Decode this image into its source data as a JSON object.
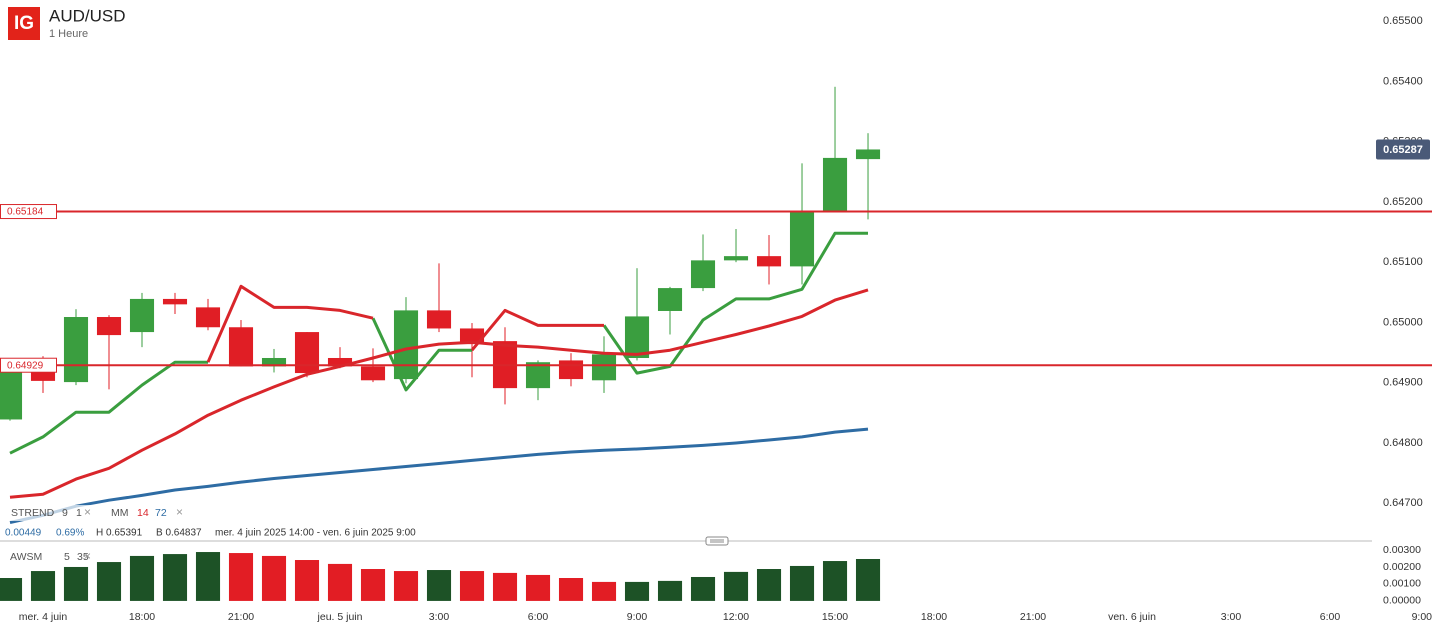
{
  "header": {
    "logo": "IG",
    "symbol": "AUD/USD",
    "interval": "1 Heure"
  },
  "chart_data": [
    {
      "type": "candlestick",
      "up_color": "#3a9e3f",
      "down_color": "#e01e25",
      "open": [
        0.64839,
        0.64929,
        0.64901,
        0.65009,
        0.64984,
        0.65039,
        0.65025,
        0.64992,
        0.64927,
        0.64984,
        0.64941,
        0.64927,
        0.64906,
        0.6502,
        0.6499,
        0.64969,
        0.64891,
        0.64937,
        0.64904,
        0.64941,
        0.65019,
        0.65057,
        0.65103,
        0.6511,
        0.65093,
        0.65183,
        0.65271
      ],
      "high": [
        0.64929,
        0.64944,
        0.65022,
        0.65012,
        0.65049,
        0.65049,
        0.65039,
        0.65004,
        0.64956,
        0.64984,
        0.64959,
        0.64957,
        0.65042,
        0.65098,
        0.64999,
        0.64992,
        0.64937,
        0.64949,
        0.64977,
        0.6509,
        0.65059,
        0.65146,
        0.65155,
        0.65145,
        0.65264,
        0.65391,
        0.65314
      ],
      "low": [
        0.64837,
        0.64883,
        0.64896,
        0.64889,
        0.64959,
        0.65014,
        0.64987,
        0.64927,
        0.64917,
        0.64909,
        0.64924,
        0.64901,
        0.64899,
        0.64984,
        0.64909,
        0.64864,
        0.64871,
        0.64894,
        0.64883,
        0.64937,
        0.6498,
        0.65052,
        0.651,
        0.65063,
        0.65063,
        0.65183,
        0.65171
      ],
      "close": [
        0.64929,
        0.64903,
        0.65009,
        0.64979,
        0.65039,
        0.6503,
        0.64992,
        0.64927,
        0.64941,
        0.64916,
        0.64927,
        0.64904,
        0.6502,
        0.6499,
        0.64964,
        0.64891,
        0.64934,
        0.64906,
        0.64947,
        0.6501,
        0.65057,
        0.65103,
        0.6511,
        0.65093,
        0.65183,
        0.65273,
        0.65287
      ],
      "xlim": [
        -0.303,
        43.09
      ],
      "xticks": [
        {
          "value": 1,
          "label": "mer. 4 juin"
        },
        {
          "value": 4,
          "label": "18:00"
        },
        {
          "value": 7,
          "label": "21:00"
        },
        {
          "value": 10,
          "label": "jeu. 5 juin"
        },
        {
          "value": 13,
          "label": "3:00"
        },
        {
          "value": 16,
          "label": "6:00"
        },
        {
          "value": 19,
          "label": "9:00"
        },
        {
          "value": 22,
          "label": "12:00"
        },
        {
          "value": 25,
          "label": "15:00"
        },
        {
          "value": 28,
          "label": "18:00"
        },
        {
          "value": 31,
          "label": "21:00"
        },
        {
          "value": 34,
          "label": "ven. 6 juin"
        },
        {
          "value": 37,
          "label": "3:00"
        },
        {
          "value": 40,
          "label": "6:00"
        },
        {
          "value": 43,
          "label": "9:00"
        }
      ],
      "ylim": [
        0.64639,
        0.65535
      ],
      "yticks": [
        {
          "value": 0.655,
          "label": "0.65500"
        },
        {
          "value": 0.654,
          "label": "0.65400"
        },
        {
          "value": 0.653,
          "label": "0.65300"
        },
        {
          "value": 0.652,
          "label": "0.65200"
        },
        {
          "value": 0.651,
          "label": "0.65100"
        },
        {
          "value": 0.65,
          "label": "0.65000"
        },
        {
          "value": 0.649,
          "label": "0.64900"
        },
        {
          "value": 0.648,
          "label": "0.64800"
        },
        {
          "value": 0.647,
          "label": "0.64700"
        }
      ],
      "hlines": [
        {
          "value": 0.65184,
          "label": "0.65184",
          "color": "#d9262b"
        },
        {
          "value": 0.64929,
          "label": "0.64929",
          "color": "#d9262b"
        }
      ],
      "last_price": {
        "value": 0.65287,
        "label": "0.65287",
        "color": "#4a5a78"
      },
      "indicators": [
        {
          "name": "STREND",
          "params": [
            "9",
            "1"
          ],
          "lines": [
            {
              "color": "#3a9e3f",
              "values": [
                0.64783,
                0.6481,
                0.64851,
                0.64851,
                0.64896,
                0.64934,
                0.64934,
                null,
                null,
                null,
                null,
                0.65007,
                0.64888,
                0.64954,
                0.64954,
                null,
                null,
                null,
                0.64995,
                0.64916,
                0.64927,
                0.65004,
                0.65039,
                0.65039,
                0.65055,
                0.65148,
                0.65148
              ]
            },
            {
              "color": "#d9262b",
              "values": [
                null,
                null,
                null,
                null,
                null,
                null,
                0.64934,
                0.6506,
                0.65025,
                0.65025,
                0.6502,
                0.65007,
                null,
                null,
                0.64954,
                0.6502,
                0.64995,
                0.64995,
                0.64995,
                null,
                null,
                null,
                null,
                null,
                null,
                null,
                null
              ]
            }
          ]
        },
        {
          "name": "MM",
          "params": [
            "14",
            "72"
          ],
          "lines": [
            {
              "color": "#d9262b",
              "values": [
                0.6471,
                0.64715,
                0.6474,
                0.64758,
                0.64788,
                0.64815,
                0.64846,
                0.64871,
                0.64893,
                0.64914,
                0.64927,
                0.64941,
                0.64956,
                0.64964,
                0.64967,
                0.64962,
                0.64959,
                0.64954,
                0.64949,
                0.64947,
                0.64954,
                0.64967,
                0.6498,
                0.64994,
                0.6501,
                0.65037,
                0.65054
              ]
            },
            {
              "color": "#2e6ca4",
              "values": [
                0.64668,
                0.6468,
                0.64695,
                0.64705,
                0.64713,
                0.64722,
                0.64728,
                0.64735,
                0.64741,
                0.64746,
                0.64751,
                0.64756,
                0.64761,
                0.64766,
                0.64771,
                0.64776,
                0.64781,
                0.64785,
                0.64788,
                0.6479,
                0.64793,
                0.64796,
                0.648,
                0.64805,
                0.6481,
                0.64818,
                0.64823
              ]
            }
          ]
        }
      ],
      "stats": {
        "change": "0.00449",
        "change_pct": "0.69%",
        "high": "H 0.65391",
        "low": "B 0.64837",
        "range": "mer. 4 juin 2025 14:00 - ven. 6 juin 2025 9:00"
      }
    },
    {
      "type": "bar",
      "title": "AWSM",
      "params": [
        "5",
        "35"
      ],
      "values": [
        0.00135,
        0.00176,
        0.002,
        0.00229,
        0.00265,
        0.00276,
        0.00288,
        0.00282,
        0.00265,
        0.00241,
        0.00218,
        0.00188,
        0.00176,
        0.00182,
        0.00176,
        0.00165,
        0.00153,
        0.00135,
        0.00112,
        0.00112,
        0.00118,
        0.00141,
        0.00171,
        0.00188,
        0.00206,
        0.00235,
        0.00247
      ],
      "colors": [
        "#1d5226",
        "#1d5226",
        "#1d5226",
        "#1d5226",
        "#1d5226",
        "#1d5226",
        "#1d5226",
        "#e21d24",
        "#e21d24",
        "#e21d24",
        "#e21d24",
        "#e21d24",
        "#e21d24",
        "#1d5226",
        "#e21d24",
        "#e21d24",
        "#e21d24",
        "#e21d24",
        "#e21d24",
        "#1d5226",
        "#1d5226",
        "#1d5226",
        "#1d5226",
        "#1d5226",
        "#1d5226",
        "#1d5226",
        "#1d5226"
      ],
      "ylim": [
        -0.00024,
        0.00353
      ],
      "yticks": [
        {
          "value": 0.003,
          "label": "0.00300"
        },
        {
          "value": 0.002,
          "label": "0.00200"
        },
        {
          "value": 0.001,
          "label": "0.00100"
        },
        {
          "value": 0,
          "label": "0.00000"
        }
      ]
    }
  ]
}
